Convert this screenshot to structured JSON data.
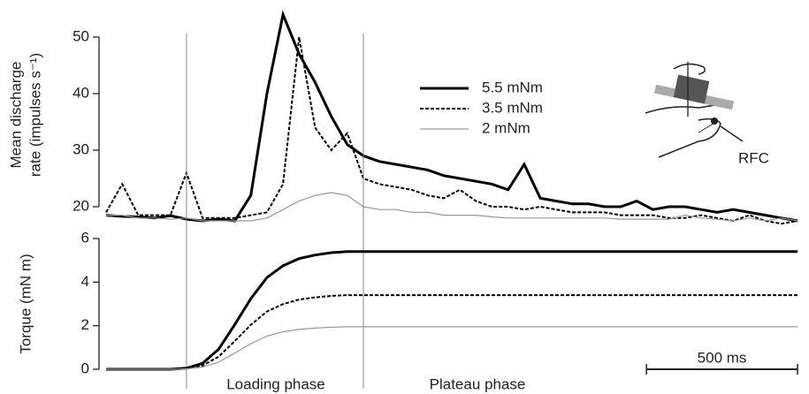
{
  "chart_data": [
    {
      "type": "line",
      "y_label": [
        "Mean discharge",
        "rate (impulses s⁻¹)"
      ],
      "x": [
        0,
        50,
        100,
        150,
        200,
        250,
        300,
        350,
        400,
        450,
        500,
        550,
        600,
        650,
        700,
        750,
        800,
        850,
        900,
        950,
        1000,
        1050,
        1100,
        1150,
        1200,
        1250,
        1300,
        1350,
        1400,
        1450,
        1500,
        1550,
        1600,
        1650,
        1700,
        1750,
        1800,
        1850,
        1900,
        1950,
        2000,
        2050,
        2100,
        2150
      ],
      "xlim": [
        0,
        2180
      ],
      "ylim": [
        17.5,
        55
      ],
      "yticks": [
        20,
        30,
        40,
        50
      ],
      "phase_boundaries": [
        250,
        800
      ],
      "legend": "upper center",
      "annotations": [
        "RFC"
      ],
      "series": [
        {
          "name": "5.5 mNm",
          "color": "#000000",
          "style": "solid-thick",
          "values": [
            18.5,
            18.3,
            18.2,
            18.0,
            18.4,
            17.8,
            17.5,
            17.8,
            17.5,
            22,
            40,
            54,
            47,
            42,
            36,
            31,
            29,
            28,
            27.5,
            27,
            26.5,
            25.5,
            25,
            24.5,
            24,
            23,
            27.5,
            21.5,
            21,
            20.5,
            20.5,
            20,
            20,
            21,
            19.5,
            20,
            20,
            19.5,
            19,
            19.5,
            19,
            18.5,
            18,
            17.5
          ]
        },
        {
          "name": "3.5 mNm",
          "color": "#000000",
          "style": "dashed",
          "values": [
            19,
            24,
            18.5,
            18.5,
            18.5,
            26,
            18,
            18,
            18,
            18.5,
            19,
            24,
            50,
            34,
            30,
            33,
            25,
            24,
            23.5,
            23,
            22,
            21.5,
            23,
            21,
            20,
            20,
            19.5,
            20,
            19.5,
            19,
            19,
            19,
            18.5,
            18.5,
            18.5,
            18,
            18,
            18.5,
            18,
            17.5,
            18.5,
            17.5,
            17,
            17.5
          ]
        },
        {
          "name": "2 mNm",
          "color": "#999999",
          "style": "solid-thin",
          "values": [
            18.5,
            18.5,
            18,
            18,
            17.8,
            18,
            17.5,
            17.5,
            17.5,
            17.5,
            18,
            19.5,
            21,
            22,
            22.5,
            22,
            20,
            19.5,
            19.5,
            19,
            19,
            18.5,
            18.5,
            18.5,
            18.2,
            18,
            18,
            18,
            18,
            18,
            18,
            18,
            17.8,
            17.8,
            17.8,
            17.8,
            18.5,
            18,
            17.8,
            17.5,
            18,
            17.5,
            18,
            17.5
          ]
        }
      ]
    },
    {
      "type": "line",
      "y_label": [
        "Torque (mN m)"
      ],
      "x": [
        0,
        50,
        100,
        150,
        200,
        250,
        300,
        350,
        400,
        450,
        500,
        550,
        600,
        650,
        700,
        750,
        800,
        850,
        900,
        950,
        1000,
        1050,
        1100,
        1150,
        1200,
        1250,
        1300,
        1350,
        1400,
        1450,
        1500,
        1550,
        1600,
        1650,
        1700,
        1750,
        1800,
        1850,
        1900,
        1950,
        2000,
        2050,
        2100,
        2150
      ],
      "xlim": [
        0,
        2180
      ],
      "ylim": [
        0,
        6
      ],
      "yticks": [
        0,
        2,
        4,
        6
      ],
      "phase_labels": [
        "Loading phase",
        "Plateau phase"
      ],
      "scale_bar": {
        "value": 500,
        "label": "500 ms"
      },
      "series": [
        {
          "color": "#000000",
          "style": "solid-thick",
          "values": [
            0,
            0,
            0,
            0,
            0,
            0.05,
            0.27,
            0.92,
            2.05,
            3.24,
            4.21,
            4.75,
            5.08,
            5.24,
            5.35,
            5.4,
            5.4,
            5.4,
            5.4,
            5.4,
            5.4,
            5.4,
            5.4,
            5.4,
            5.4,
            5.4,
            5.4,
            5.4,
            5.4,
            5.4,
            5.4,
            5.4,
            5.4,
            5.4,
            5.4,
            5.4,
            5.4,
            5.4,
            5.4,
            5.4,
            5.4,
            5.4,
            5.4,
            5.4
          ]
        },
        {
          "color": "#000000",
          "style": "dashed",
          "values": [
            0,
            0,
            0,
            0,
            0,
            0.03,
            0.17,
            0.58,
            1.29,
            2.04,
            2.65,
            2.99,
            3.2,
            3.3,
            3.37,
            3.4,
            3.4,
            3.4,
            3.4,
            3.4,
            3.4,
            3.4,
            3.4,
            3.4,
            3.4,
            3.4,
            3.4,
            3.4,
            3.4,
            3.4,
            3.4,
            3.4,
            3.4,
            3.4,
            3.4,
            3.4,
            3.4,
            3.4,
            3.4,
            3.4,
            3.4,
            3.4,
            3.4,
            3.4
          ]
        },
        {
          "color": "#999999",
          "style": "solid-thin",
          "values": [
            0,
            0,
            0,
            0,
            0,
            0.02,
            0.1,
            0.33,
            0.74,
            1.17,
            1.52,
            1.72,
            1.83,
            1.89,
            1.93,
            1.95,
            1.95,
            1.95,
            1.95,
            1.95,
            1.95,
            1.95,
            1.95,
            1.95,
            1.95,
            1.95,
            1.95,
            1.95,
            1.95,
            1.95,
            1.95,
            1.95,
            1.95,
            1.95,
            1.95,
            1.95,
            1.95,
            1.95,
            1.95,
            1.95,
            1.95,
            1.95,
            1.95,
            1.95
          ]
        }
      ]
    }
  ]
}
